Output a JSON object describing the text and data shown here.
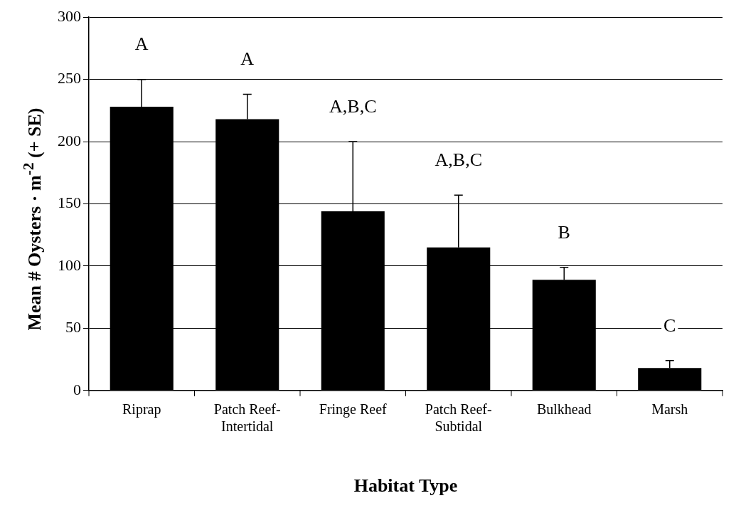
{
  "chart_data": {
    "type": "bar",
    "xlabel": "Habitat Type",
    "ylabel": "Mean # Oysters · m$^{-2}$ (+ SE)",
    "categories": [
      "Riprap",
      "Patch Reef-Intertidal",
      "Fringe Reef",
      "Patch Reef-Subtidal",
      "Bulkhead",
      "Marsh"
    ],
    "values": [
      228,
      218,
      144,
      115,
      89,
      18
    ],
    "color": "#000000",
    "errors": [
      [
        228,
        250
      ],
      [
        218,
        238
      ],
      [
        144,
        200
      ],
      [
        115,
        157
      ],
      [
        89,
        99
      ],
      [
        18,
        24
      ]
    ],
    "ylim": [
      0,
      300
    ],
    "yticks": [
      0,
      50,
      100,
      150,
      200,
      250,
      300
    ],
    "grid": "y",
    "annotations": [
      "A",
      "A",
      "A,B,C",
      "A,B,C",
      "B",
      "C"
    ]
  }
}
